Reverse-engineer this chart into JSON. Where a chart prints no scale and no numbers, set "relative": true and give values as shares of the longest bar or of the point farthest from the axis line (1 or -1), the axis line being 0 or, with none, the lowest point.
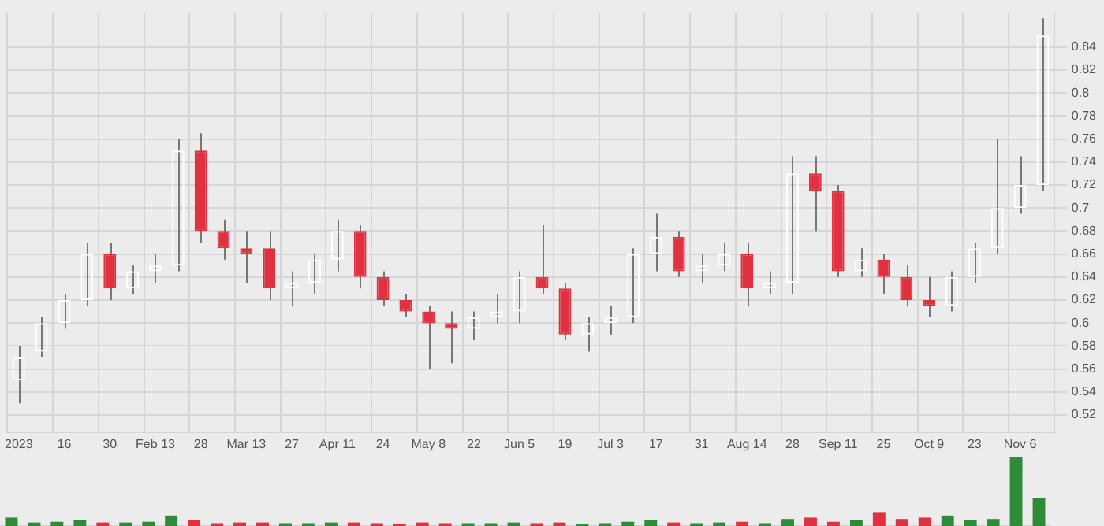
{
  "chart_data": [
    {
      "type": "candlestick",
      "categories": [
        "2023",
        null,
        "16",
        null,
        "30",
        null,
        "Feb 13",
        null,
        "28",
        null,
        "Mar 13",
        null,
        "27",
        null,
        "Apr 11",
        null,
        "24",
        null,
        "May 8",
        null,
        "22",
        null,
        "Jun 5",
        null,
        "19",
        null,
        "Jul 3",
        null,
        "17",
        null,
        "31",
        null,
        "Aug 14",
        null,
        "28",
        null,
        "Sep 11",
        null,
        "25",
        null,
        "Oct 9",
        null,
        "23",
        null,
        "Nov 6",
        null
      ],
      "ohlc": [
        [
          0.55,
          0.58,
          0.53,
          0.57
        ],
        [
          0.575,
          0.605,
          0.57,
          0.6
        ],
        [
          0.6,
          0.625,
          0.595,
          0.62
        ],
        [
          0.62,
          0.67,
          0.615,
          0.66
        ],
        [
          0.66,
          0.67,
          0.62,
          0.63
        ],
        [
          0.63,
          0.65,
          0.625,
          0.645
        ],
        [
          0.645,
          0.66,
          0.635,
          0.65
        ],
        [
          0.65,
          0.76,
          0.645,
          0.75
        ],
        [
          0.75,
          0.765,
          0.67,
          0.68
        ],
        [
          0.68,
          0.69,
          0.655,
          0.665
        ],
        [
          0.665,
          0.68,
          0.635,
          0.66
        ],
        [
          0.665,
          0.68,
          0.62,
          0.63
        ],
        [
          0.63,
          0.645,
          0.615,
          0.635
        ],
        [
          0.635,
          0.66,
          0.625,
          0.655
        ],
        [
          0.655,
          0.69,
          0.645,
          0.68
        ],
        [
          0.68,
          0.685,
          0.63,
          0.64
        ],
        [
          0.64,
          0.645,
          0.615,
          0.62
        ],
        [
          0.62,
          0.625,
          0.605,
          0.61
        ],
        [
          0.61,
          0.615,
          0.56,
          0.6
        ],
        [
          0.6,
          0.61,
          0.565,
          0.595
        ],
        [
          0.595,
          0.61,
          0.585,
          0.605
        ],
        [
          0.605,
          0.625,
          0.6,
          0.61
        ],
        [
          0.61,
          0.645,
          0.6,
          0.64
        ],
        [
          0.64,
          0.685,
          0.625,
          0.63
        ],
        [
          0.63,
          0.635,
          0.585,
          0.59
        ],
        [
          0.59,
          0.605,
          0.575,
          0.6
        ],
        [
          0.6,
          0.615,
          0.59,
          0.605
        ],
        [
          0.605,
          0.665,
          0.6,
          0.66
        ],
        [
          0.66,
          0.695,
          0.645,
          0.675
        ],
        [
          0.675,
          0.68,
          0.64,
          0.645
        ],
        [
          0.645,
          0.66,
          0.635,
          0.65
        ],
        [
          0.65,
          0.67,
          0.645,
          0.66
        ],
        [
          0.66,
          0.67,
          0.615,
          0.63
        ],
        [
          0.63,
          0.645,
          0.625,
          0.635
        ],
        [
          0.635,
          0.745,
          0.625,
          0.73
        ],
        [
          0.73,
          0.745,
          0.68,
          0.715
        ],
        [
          0.715,
          0.72,
          0.64,
          0.645
        ],
        [
          0.645,
          0.665,
          0.64,
          0.655
        ],
        [
          0.655,
          0.66,
          0.625,
          0.64
        ],
        [
          0.64,
          0.65,
          0.615,
          0.62
        ],
        [
          0.62,
          0.64,
          0.605,
          0.615
        ],
        [
          0.615,
          0.645,
          0.61,
          0.64
        ],
        [
          0.64,
          0.67,
          0.635,
          0.665
        ],
        [
          0.665,
          0.76,
          0.66,
          0.7
        ],
        [
          0.7,
          0.745,
          0.695,
          0.72
        ],
        [
          0.72,
          0.865,
          0.715,
          0.85
        ]
      ],
      "colors": [
        "#ffffff",
        "#ffffff",
        "#ffffff",
        "#ffffff",
        "#e03140",
        "#ffffff",
        "#ffffff",
        "#ffffff",
        "#e03140",
        "#e03140",
        "#e03140",
        "#e03140",
        "#ffffff",
        "#ffffff",
        "#ffffff",
        "#e03140",
        "#e03140",
        "#e03140",
        "#e03140",
        "#e03140",
        "#ffffff",
        "#ffffff",
        "#ffffff",
        "#e03140",
        "#e03140",
        "#ffffff",
        "#ffffff",
        "#ffffff",
        "#ffffff",
        "#e03140",
        "#ffffff",
        "#ffffff",
        "#e03140",
        "#ffffff",
        "#ffffff",
        "#e03140",
        "#e03140",
        "#ffffff",
        "#e03140",
        "#e03140",
        "#e03140",
        "#ffffff",
        "#ffffff",
        "#ffffff",
        "#ffffff",
        "#ffffff"
      ],
      "ylim": [
        0.505,
        0.87
      ],
      "yticks": [
        0.52,
        0.54,
        0.56,
        0.58,
        0.6,
        0.62,
        0.64,
        0.66,
        0.68,
        0.7,
        0.72,
        0.74,
        0.76,
        0.78,
        0.8,
        0.82,
        0.84
      ],
      "grid": true
    },
    {
      "type": "bar",
      "relative": true,
      "categories": [
        null,
        null,
        null,
        null,
        null,
        null,
        null,
        null,
        null,
        null,
        null,
        null,
        null,
        null,
        null,
        null,
        null,
        null,
        null,
        null,
        null,
        null,
        null,
        null,
        null,
        null,
        null,
        null,
        null,
        null,
        null,
        null,
        null,
        null,
        null,
        null,
        null,
        null,
        null,
        null,
        null,
        null,
        null,
        null,
        null,
        null
      ],
      "values": [
        0.12,
        0.05,
        0.06,
        0.08,
        0.05,
        0.05,
        0.06,
        0.15,
        0.08,
        0.04,
        0.05,
        0.05,
        0.04,
        0.04,
        0.05,
        0.05,
        0.04,
        0.03,
        0.05,
        0.04,
        0.04,
        0.04,
        0.05,
        0.04,
        0.05,
        0.03,
        0.04,
        0.06,
        0.08,
        0.05,
        0.04,
        0.05,
        0.06,
        0.04,
        0.1,
        0.12,
        0.06,
        0.08,
        0.2,
        0.1,
        0.12,
        0.15,
        0.08,
        0.1,
        1,
        0.4
      ],
      "colors": [
        "#2e8b3a",
        "#2e8b3a",
        "#2e8b3a",
        "#2e8b3a",
        "#e03140",
        "#2e8b3a",
        "#2e8b3a",
        "#2e8b3a",
        "#e03140",
        "#e03140",
        "#e03140",
        "#e03140",
        "#2e8b3a",
        "#2e8b3a",
        "#2e8b3a",
        "#e03140",
        "#e03140",
        "#e03140",
        "#e03140",
        "#e03140",
        "#2e8b3a",
        "#2e8b3a",
        "#2e8b3a",
        "#e03140",
        "#e03140",
        "#2e8b3a",
        "#2e8b3a",
        "#2e8b3a",
        "#2e8b3a",
        "#e03140",
        "#2e8b3a",
        "#2e8b3a",
        "#e03140",
        "#2e8b3a",
        "#2e8b3a",
        "#e03140",
        "#e03140",
        "#2e8b3a",
        "#e03140",
        "#e03140",
        "#e03140",
        "#2e8b3a",
        "#2e8b3a",
        "#2e8b3a",
        "#2e8b3a",
        "#2e8b3a"
      ],
      "grid": "x"
    }
  ]
}
